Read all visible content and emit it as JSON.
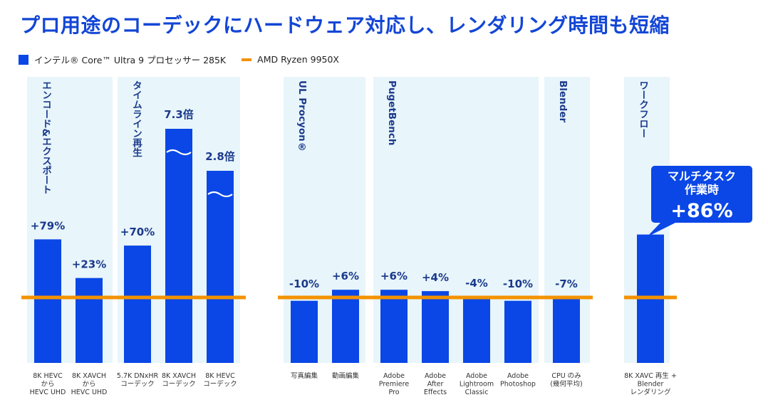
{
  "title": "プロ用途のコーデックにハードウェア対応し、レンダリング時間も短縮",
  "colors": {
    "intel": "#0a47e6",
    "amd": "#f39200",
    "panel": "#e8f5fa",
    "label": "#1b3a8c"
  },
  "legend": [
    {
      "label": "インテル® Core™ Ultra 9 プロセッサー 285K",
      "color": "#0a47e6"
    },
    {
      "label": "AMD Ryzen 9950X",
      "color": "#f39200"
    }
  ],
  "chart_data": {
    "type": "bar",
    "title": "プロ用途のコーデックにハードウェア対応し、レンダリング時間も短縮",
    "baseline_series": "AMD Ryzen 9950X",
    "baseline_value": 1.0,
    "series": [
      {
        "name": "インテル® Core™ Ultra 9 プロセッサー 285K",
        "unit": "relative performance (AMD Ryzen 9950X = 1.0)"
      }
    ],
    "groups": [
      {
        "label": "エンコード&エクスポート",
        "bars": [
          {
            "category": [
              "8K HEVC",
              "から",
              "HEVC UHD"
            ],
            "value": 1.79,
            "label": "+79%"
          },
          {
            "category": [
              "8K XAVCH",
              "から",
              "HEVC UHD"
            ],
            "value": 1.23,
            "label": "+23%"
          }
        ]
      },
      {
        "label": "タイムライン再生",
        "bars": [
          {
            "category": [
              "5.7K DNxHR",
              "コーデック"
            ],
            "value": 1.7,
            "label": "+70%"
          },
          {
            "category": [
              "8K XAVCH",
              "コーデック"
            ],
            "value": 7.3,
            "label": "7.3倍",
            "broken_axis": true
          },
          {
            "category": [
              "8K HEVC",
              "コーデック"
            ],
            "value": 2.8,
            "label": "2.8倍",
            "broken_axis": true
          }
        ]
      },
      {
        "label": "UL Procyon®",
        "bars": [
          {
            "category": [
              "写真編集"
            ],
            "value": 0.9,
            "label": "-10%"
          },
          {
            "category": [
              "動画編集"
            ],
            "value": 1.06,
            "label": "+6%"
          }
        ]
      },
      {
        "label": "PugetBench",
        "bars": [
          {
            "category": [
              "Adobe",
              "Premiere",
              "Pro"
            ],
            "value": 1.06,
            "label": "+6%"
          },
          {
            "category": [
              "Adobe",
              "After",
              "Effects"
            ],
            "value": 1.04,
            "label": "+4%"
          },
          {
            "category": [
              "Adobe",
              "Lightroom",
              "Classic"
            ],
            "value": 0.96,
            "label": "-4%"
          },
          {
            "category": [
              "Adobe",
              "Photoshop"
            ],
            "value": 0.9,
            "label": "-10%"
          }
        ]
      },
      {
        "label": "Blender",
        "bars": [
          {
            "category": [
              "CPU のみ",
              "(幾何平均)"
            ],
            "value": 0.93,
            "label": "-7%"
          }
        ]
      },
      {
        "label": "ワークフロー",
        "bars": [
          {
            "category": [
              "8K XAVC 再生 +",
              "Blender",
              "レンダリング"
            ],
            "value": 1.86,
            "label": "+86%"
          }
        ],
        "callout": {
          "lines": [
            "マルチタスク",
            "作業時"
          ],
          "value": "+86%"
        }
      }
    ]
  }
}
